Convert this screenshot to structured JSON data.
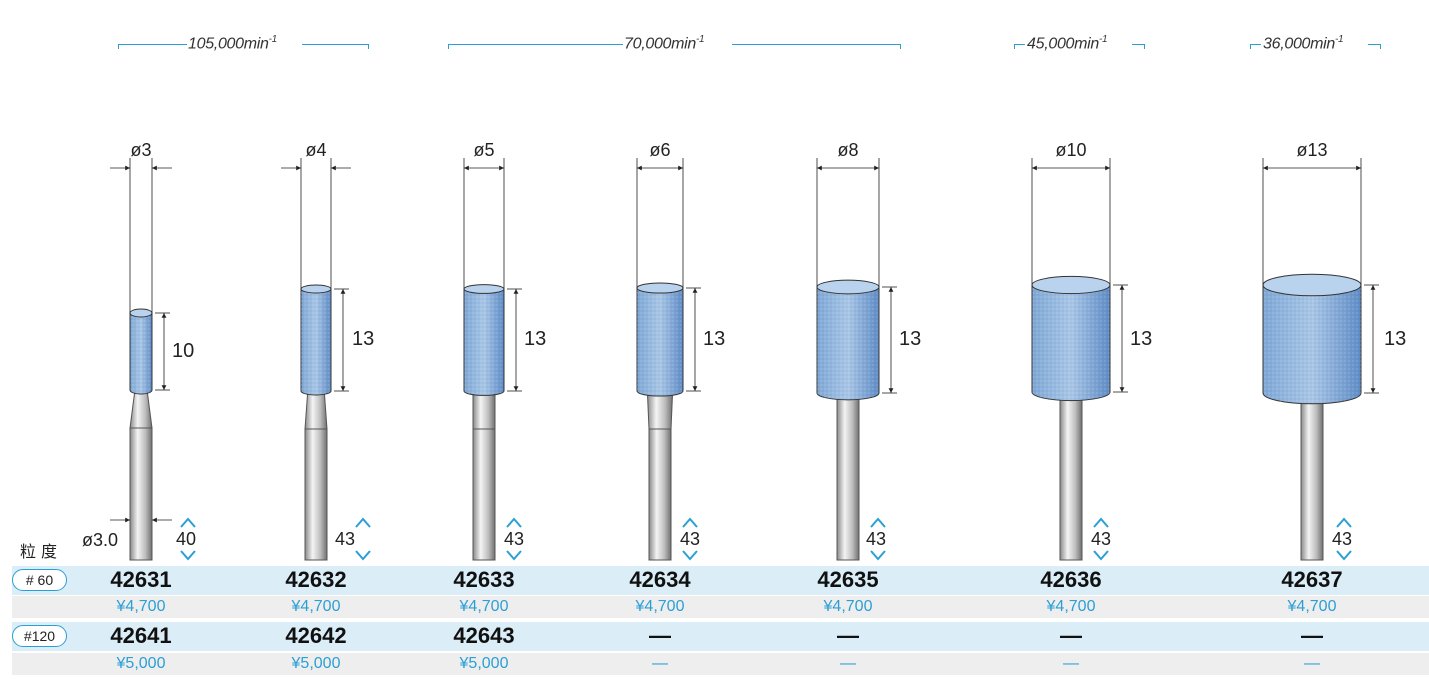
{
  "speeds": [
    {
      "value": "105,000",
      "unit": "min",
      "exp": "-1"
    },
    {
      "value": "70,000",
      "unit": "min",
      "exp": "-1"
    },
    {
      "value": "45,000",
      "unit": "min",
      "exp": "-1"
    },
    {
      "value": "36,000",
      "unit": "min",
      "exp": "-1"
    }
  ],
  "tools": [
    {
      "diameter": "ø3",
      "length": "10",
      "total": "40"
    },
    {
      "diameter": "ø4",
      "length": "13",
      "total": "43"
    },
    {
      "diameter": "ø5",
      "length": "13",
      "total": "43"
    },
    {
      "diameter": "ø6",
      "length": "13",
      "total": "43"
    },
    {
      "diameter": "ø8",
      "length": "13",
      "total": "43"
    },
    {
      "diameter": "ø10",
      "length": "13",
      "total": "43"
    },
    {
      "diameter": "ø13",
      "length": "13",
      "total": "43"
    }
  ],
  "shank_diameter": "ø3.0",
  "grit_header": "粒度",
  "grits": [
    {
      "label": "# 60",
      "codes": [
        "42631",
        "42632",
        "42633",
        "42634",
        "42635",
        "42636",
        "42637"
      ],
      "prices": [
        "¥4,700",
        "¥4,700",
        "¥4,700",
        "¥4,700",
        "¥4,700",
        "¥4,700",
        "¥4,700"
      ]
    },
    {
      "label": "#120",
      "codes": [
        "42641",
        "42642",
        "42643",
        "—",
        "—",
        "—",
        "—"
      ],
      "prices": [
        "¥5,000",
        "¥5,000",
        "¥5,000",
        "—",
        "—",
        "—",
        "—"
      ]
    }
  ],
  "colors": {
    "accent": "#2a9fd6",
    "stone": "#7fa8d6",
    "code_row": "#dbeef8",
    "price_row": "#eeeeee"
  }
}
